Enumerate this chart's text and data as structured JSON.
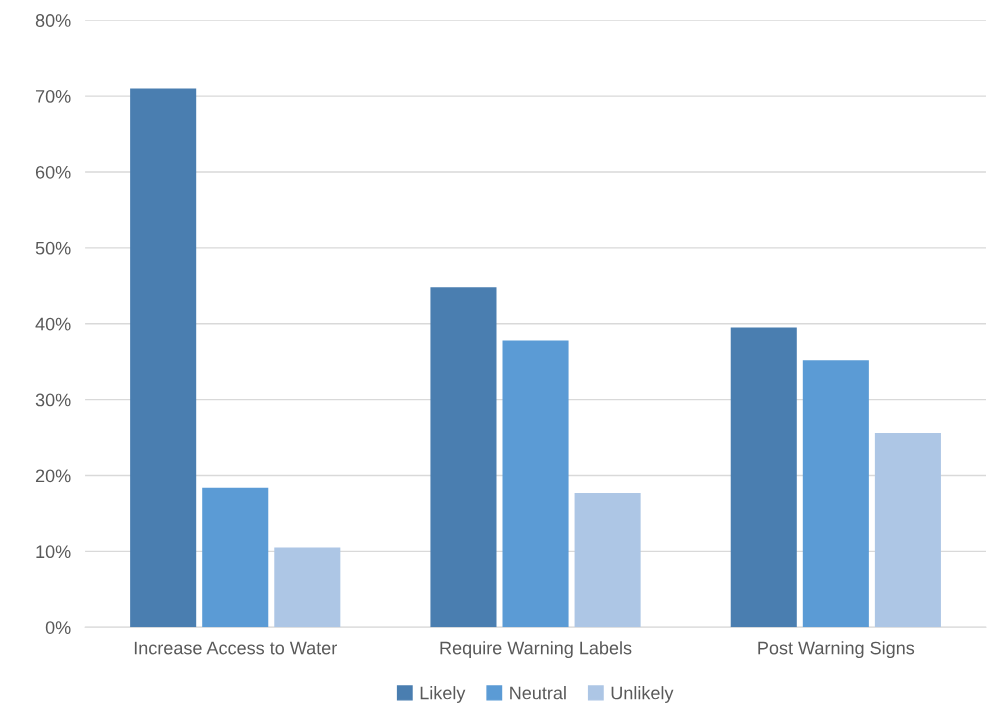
{
  "chart_data": {
    "type": "bar",
    "categories": [
      "Increase Access to Water",
      "Require Warning Labels",
      "Post Warning Signs"
    ],
    "series": [
      {
        "name": "Likely",
        "color": "#4a7eb0",
        "values": [
          71,
          44.8,
          39.5
        ]
      },
      {
        "name": "Neutral",
        "color": "#5b9bd5",
        "values": [
          18.4,
          37.8,
          35.2
        ]
      },
      {
        "name": "Unlikely",
        "color": "#adc6e5",
        "values": [
          10.5,
          17.7,
          25.6
        ]
      }
    ],
    "ylim": [
      0,
      80
    ],
    "yticks": [
      {
        "value": 0,
        "label": "0%"
      },
      {
        "value": 10,
        "label": "10%"
      },
      {
        "value": 20,
        "label": "20%"
      },
      {
        "value": 30,
        "label": "30%"
      },
      {
        "value": 40,
        "label": "40%"
      },
      {
        "value": 50,
        "label": "50%"
      },
      {
        "value": 60,
        "label": "60%"
      },
      {
        "value": 70,
        "label": "70%"
      },
      {
        "value": 80,
        "label": "80%"
      }
    ],
    "grid": "y",
    "legend": "bottom"
  }
}
